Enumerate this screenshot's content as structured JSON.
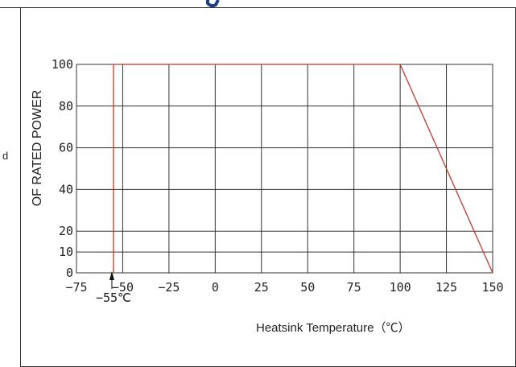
{
  "page": {
    "side_label_fragment": "d"
  },
  "chart_data": {
    "type": "line",
    "title": "",
    "xlabel": "Heatsink Temperature（℃）",
    "ylabel": "OF RATED POWER",
    "xlim": [
      -75,
      150
    ],
    "ylim": [
      0,
      100
    ],
    "x_ticks": [
      -75,
      -50,
      -25,
      0,
      25,
      50,
      75,
      100,
      125,
      150
    ],
    "x_tick_labels": [
      "−75",
      "−50",
      "−25",
      "0",
      "25",
      "50",
      "75",
      "100",
      "125",
      "150"
    ],
    "y_ticks": [
      0,
      10,
      20,
      40,
      60,
      80,
      100
    ],
    "y_tick_labels": [
      "0",
      "10",
      "20",
      "40",
      "60",
      "80",
      "100"
    ],
    "grid": true,
    "series": [
      {
        "x": [
          -55,
          -55,
          100,
          150
        ],
        "y": [
          0,
          100,
          100,
          0
        ],
        "color": "#c0392b"
      }
    ],
    "annotations": [
      {
        "text": "−55℃",
        "x": -55,
        "y": 0
      }
    ]
  },
  "colors": {
    "curve": "#c0392b",
    "grid": "#333333",
    "frame": "#333333",
    "title_fragment": "#1f3c88"
  }
}
